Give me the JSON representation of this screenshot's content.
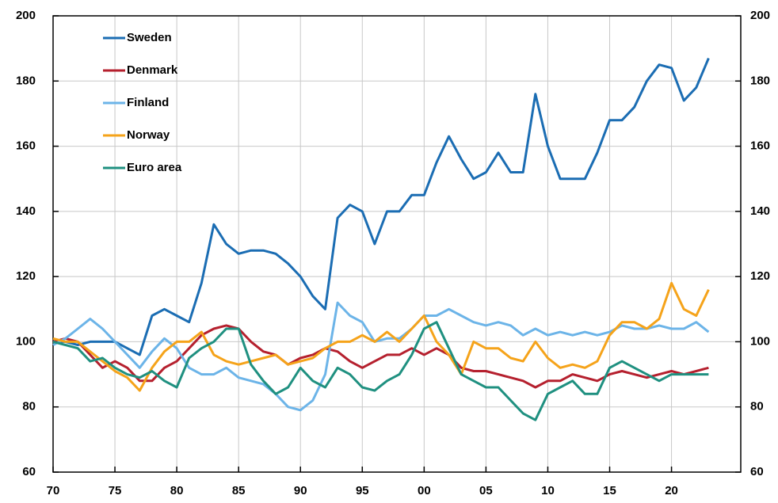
{
  "chart_data": {
    "type": "line",
    "x": [
      1970,
      1971,
      1972,
      1973,
      1974,
      1975,
      1976,
      1977,
      1978,
      1979,
      1980,
      1981,
      1982,
      1983,
      1984,
      1985,
      1986,
      1987,
      1988,
      1989,
      1990,
      1991,
      1992,
      1993,
      1994,
      1995,
      1996,
      1997,
      1998,
      1999,
      2000,
      2001,
      2002,
      2003,
      2004,
      2005,
      2006,
      2007,
      2008,
      2009,
      2010,
      2011,
      2012,
      2013,
      2014,
      2015,
      2016,
      2017,
      2018,
      2019,
      2020,
      2021,
      2022,
      2023
    ],
    "series": [
      {
        "name": "Sweden",
        "color": "#1b6db3",
        "values": [
          100,
          100,
          99,
          100,
          100,
          100,
          98,
          96,
          108,
          110,
          108,
          106,
          118,
          136,
          130,
          127,
          128,
          128,
          127,
          124,
          120,
          114,
          110,
          138,
          142,
          140,
          130,
          140,
          140,
          145,
          145,
          155,
          163,
          156,
          150,
          152,
          158,
          152,
          152,
          176,
          160,
          150,
          150,
          150,
          158,
          168,
          168,
          172,
          180,
          185,
          184,
          174,
          178,
          187
        ]
      },
      {
        "name": "Denmark",
        "color": "#b5202e",
        "values": [
          100,
          101,
          100,
          96,
          92,
          94,
          92,
          88,
          88,
          92,
          94,
          98,
          102,
          104,
          105,
          104,
          100,
          97,
          96,
          93,
          95,
          96,
          98,
          97,
          94,
          92,
          94,
          96,
          96,
          98,
          96,
          98,
          96,
          92,
          91,
          91,
          90,
          89,
          88,
          86,
          88,
          88,
          90,
          89,
          88,
          90,
          91,
          90,
          89,
          90,
          91,
          90,
          91,
          92
        ]
      },
      {
        "name": "Finland",
        "color": "#6cb4e8",
        "values": [
          99,
          101,
          104,
          107,
          104,
          100,
          96,
          92,
          97,
          101,
          98,
          92,
          90,
          90,
          92,
          89,
          88,
          87,
          84,
          80,
          79,
          82,
          90,
          112,
          108,
          106,
          100,
          101,
          101,
          104,
          108,
          108,
          110,
          108,
          106,
          105,
          106,
          105,
          102,
          104,
          102,
          103,
          102,
          103,
          102,
          103,
          105,
          104,
          104,
          105,
          104,
          104,
          106,
          103
        ]
      },
      {
        "name": "Norway",
        "color": "#f5a31a",
        "values": [
          101,
          100,
          100,
          97,
          94,
          91,
          89,
          85,
          92,
          97,
          100,
          100,
          103,
          96,
          94,
          93,
          94,
          95,
          96,
          93,
          94,
          95,
          98,
          100,
          100,
          102,
          100,
          103,
          100,
          104,
          108,
          100,
          96,
          90,
          100,
          98,
          98,
          95,
          94,
          100,
          95,
          92,
          93,
          92,
          94,
          102,
          106,
          106,
          104,
          107,
          118,
          110,
          108,
          116
        ]
      },
      {
        "name": "Euro area",
        "color": "#1f9080",
        "values": [
          100,
          99,
          98,
          94,
          95,
          92,
          90,
          89,
          91,
          88,
          86,
          95,
          98,
          100,
          104,
          104,
          93,
          88,
          84,
          86,
          92,
          88,
          86,
          92,
          90,
          86,
          85,
          88,
          90,
          96,
          104,
          106,
          98,
          90,
          88,
          86,
          86,
          82,
          78,
          76,
          84,
          86,
          88,
          84,
          84,
          92,
          94,
          92,
          90,
          88,
          90,
          90,
          90,
          90
        ]
      }
    ],
    "xlim": [
      1970,
      2025.6
    ],
    "xticks": [
      {
        "value": 1970,
        "label": "70"
      },
      {
        "value": 1975,
        "label": "75"
      },
      {
        "value": 1980,
        "label": "80"
      },
      {
        "value": 1985,
        "label": "85"
      },
      {
        "value": 1990,
        "label": "90"
      },
      {
        "value": 1995,
        "label": "95"
      },
      {
        "value": 2000,
        "label": "00"
      },
      {
        "value": 2005,
        "label": "05"
      },
      {
        "value": 2010,
        "label": "10"
      },
      {
        "value": 2015,
        "label": "15"
      },
      {
        "value": 2020,
        "label": "20"
      }
    ],
    "ylim": [
      60,
      200
    ],
    "yticks": [
      60,
      80,
      100,
      120,
      140,
      160,
      180,
      200
    ],
    "y2lim": [
      60,
      200
    ],
    "y2ticks": [
      60,
      80,
      100,
      120,
      140,
      160,
      180,
      200
    ],
    "grid": true,
    "legend": "upper left"
  }
}
